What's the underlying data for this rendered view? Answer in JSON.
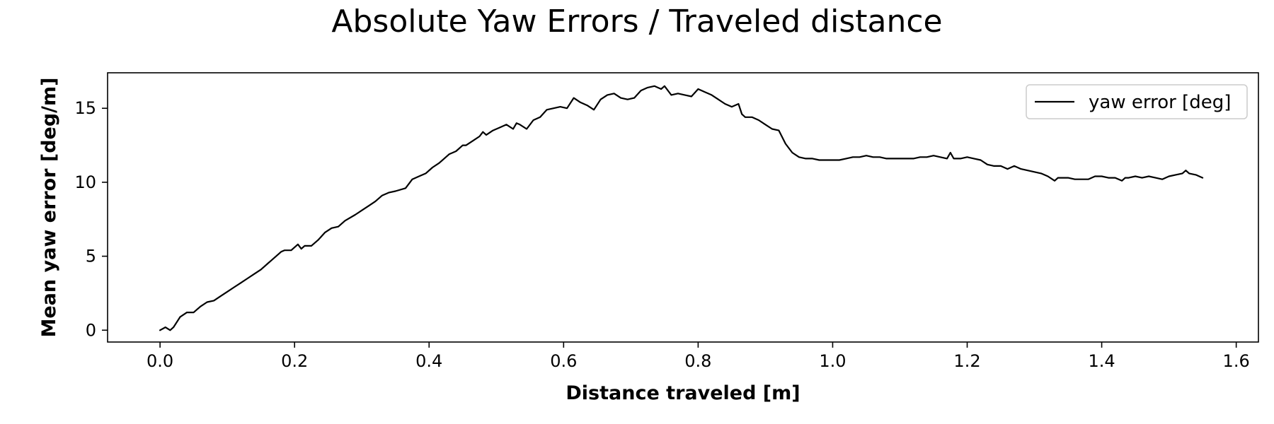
{
  "chart_data": {
    "type": "line",
    "title": "Absolute Yaw Errors / Traveled distance",
    "xlabel": "Distance traveled [m]",
    "ylabel": "Mean yaw error [deg/m]",
    "xlim": [
      -0.078,
      1.633
    ],
    "ylim": [
      -0.8,
      17.4
    ],
    "xticks": [
      0.0,
      0.2,
      0.4,
      0.6,
      0.8,
      1.0,
      1.2,
      1.4,
      1.6
    ],
    "xtick_labels": [
      "0.0",
      "0.2",
      "0.4",
      "0.6",
      "0.8",
      "1.0",
      "1.2",
      "1.4",
      "1.6"
    ],
    "yticks": [
      0,
      5,
      10,
      15
    ],
    "ytick_labels": [
      "0",
      "5",
      "10",
      "15"
    ],
    "grid": false,
    "legend_position": "top-right",
    "series": [
      {
        "name": "yaw error [deg]",
        "color": "#000000",
        "x": [
          0.0,
          0.008,
          0.015,
          0.02,
          0.03,
          0.04,
          0.05,
          0.06,
          0.07,
          0.08,
          0.09,
          0.1,
          0.11,
          0.12,
          0.13,
          0.14,
          0.15,
          0.16,
          0.17,
          0.18,
          0.185,
          0.195,
          0.205,
          0.21,
          0.215,
          0.225,
          0.235,
          0.245,
          0.255,
          0.265,
          0.275,
          0.29,
          0.3,
          0.31,
          0.32,
          0.33,
          0.34,
          0.35,
          0.365,
          0.375,
          0.385,
          0.395,
          0.405,
          0.415,
          0.425,
          0.43,
          0.44,
          0.45,
          0.455,
          0.465,
          0.475,
          0.48,
          0.485,
          0.495,
          0.505,
          0.515,
          0.525,
          0.53,
          0.535,
          0.545,
          0.555,
          0.565,
          0.575,
          0.585,
          0.595,
          0.605,
          0.615,
          0.625,
          0.635,
          0.645,
          0.655,
          0.665,
          0.675,
          0.685,
          0.695,
          0.705,
          0.715,
          0.725,
          0.735,
          0.745,
          0.75,
          0.76,
          0.77,
          0.78,
          0.79,
          0.8,
          0.81,
          0.82,
          0.83,
          0.84,
          0.85,
          0.86,
          0.865,
          0.87,
          0.88,
          0.89,
          0.9,
          0.91,
          0.92,
          0.93,
          0.94,
          0.95,
          0.96,
          0.97,
          0.98,
          0.99,
          1.0,
          1.01,
          1.02,
          1.03,
          1.04,
          1.05,
          1.06,
          1.07,
          1.08,
          1.09,
          1.1,
          1.11,
          1.12,
          1.13,
          1.14,
          1.15,
          1.16,
          1.17,
          1.175,
          1.18,
          1.19,
          1.2,
          1.21,
          1.22,
          1.23,
          1.24,
          1.25,
          1.26,
          1.27,
          1.28,
          1.29,
          1.3,
          1.31,
          1.32,
          1.33,
          1.335,
          1.34,
          1.35,
          1.36,
          1.37,
          1.38,
          1.39,
          1.4,
          1.41,
          1.42,
          1.43,
          1.435,
          1.44,
          1.45,
          1.46,
          1.47,
          1.48,
          1.49,
          1.5,
          1.51,
          1.52,
          1.525,
          1.53,
          1.54,
          1.55
        ],
        "y": [
          0.0,
          0.2,
          0.0,
          0.2,
          0.9,
          1.2,
          1.2,
          1.6,
          1.9,
          2.0,
          2.3,
          2.6,
          2.9,
          3.2,
          3.5,
          3.8,
          4.1,
          4.5,
          4.9,
          5.3,
          5.4,
          5.4,
          5.8,
          5.5,
          5.7,
          5.7,
          6.1,
          6.6,
          6.9,
          7.0,
          7.4,
          7.8,
          8.1,
          8.4,
          8.7,
          9.1,
          9.3,
          9.4,
          9.6,
          10.2,
          10.4,
          10.6,
          11.0,
          11.3,
          11.7,
          11.9,
          12.1,
          12.5,
          12.5,
          12.8,
          13.1,
          13.4,
          13.2,
          13.5,
          13.7,
          13.9,
          13.6,
          14.0,
          13.9,
          13.6,
          14.2,
          14.4,
          14.9,
          15.0,
          15.1,
          15.0,
          15.7,
          15.4,
          15.2,
          14.9,
          15.6,
          15.9,
          16.0,
          15.7,
          15.6,
          15.7,
          16.2,
          16.4,
          16.5,
          16.3,
          16.5,
          15.9,
          16.0,
          15.9,
          15.8,
          16.3,
          16.1,
          15.9,
          15.6,
          15.3,
          15.1,
          15.3,
          14.6,
          14.4,
          14.4,
          14.2,
          13.9,
          13.6,
          13.5,
          12.6,
          12.0,
          11.7,
          11.6,
          11.6,
          11.5,
          11.5,
          11.5,
          11.5,
          11.6,
          11.7,
          11.7,
          11.8,
          11.7,
          11.7,
          11.6,
          11.6,
          11.6,
          11.6,
          11.6,
          11.7,
          11.7,
          11.8,
          11.7,
          11.6,
          12.0,
          11.6,
          11.6,
          11.7,
          11.6,
          11.5,
          11.2,
          11.1,
          11.1,
          10.9,
          11.1,
          10.9,
          10.8,
          10.7,
          10.6,
          10.4,
          10.1,
          10.3,
          10.3,
          10.3,
          10.2,
          10.2,
          10.2,
          10.4,
          10.4,
          10.3,
          10.3,
          10.1,
          10.3,
          10.3,
          10.4,
          10.3,
          10.4,
          10.3,
          10.2,
          10.4,
          10.5,
          10.6,
          10.8,
          10.6,
          10.5,
          10.3
        ]
      }
    ]
  }
}
